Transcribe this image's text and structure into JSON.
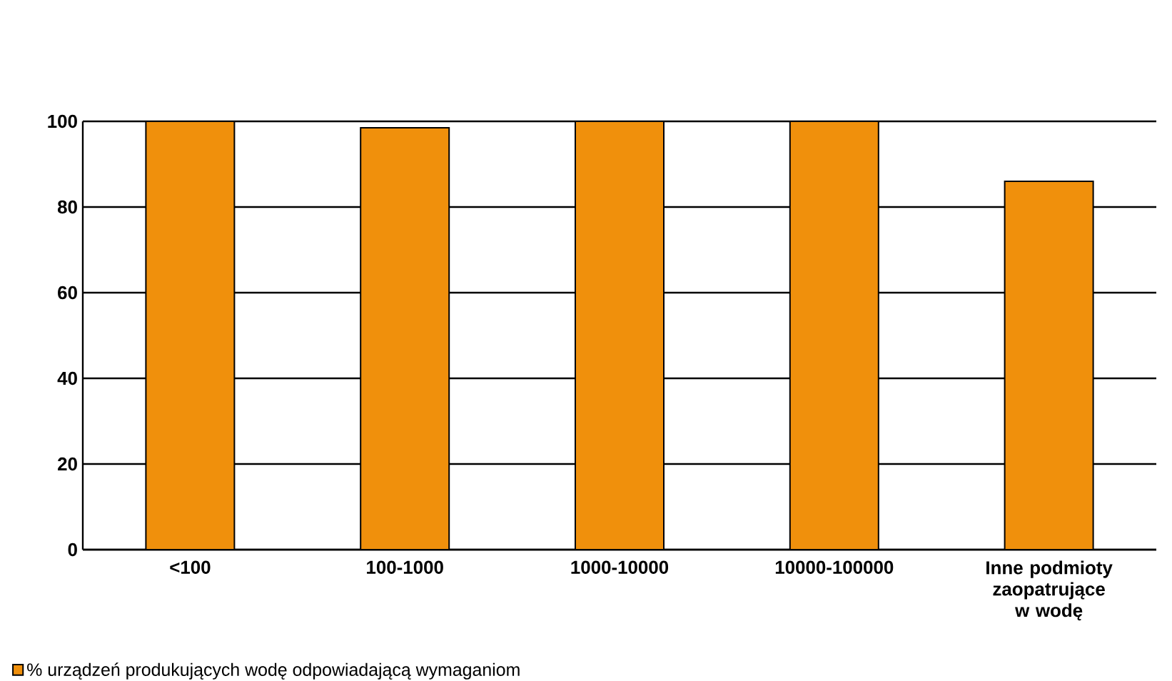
{
  "chart_data": {
    "type": "bar",
    "categories": [
      "<100",
      "100-1000",
      "1000-10000",
      "10000-100000",
      "Inne podmioty zaopatrujące w wodę"
    ],
    "series": [
      {
        "name": "% urządzeń produkujących wodę odpowiadającą wymaganiom",
        "color": "#f0900c",
        "values": [
          100,
          98.5,
          100,
          100,
          86
        ]
      }
    ],
    "ylim": [
      0,
      100
    ],
    "yticks": [
      0,
      20,
      40,
      60,
      80,
      100
    ],
    "grid": "y",
    "legend": "bottom left"
  }
}
